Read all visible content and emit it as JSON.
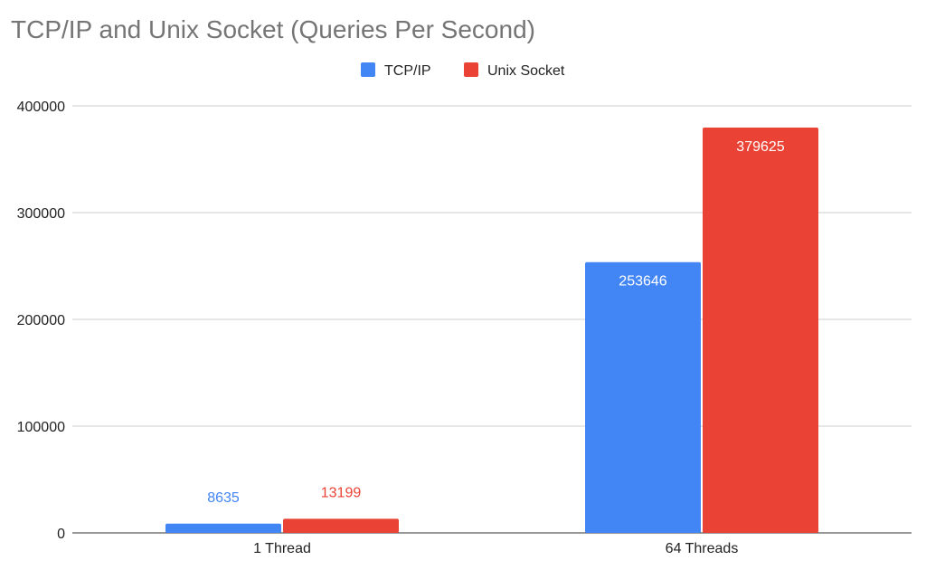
{
  "chart_data": {
    "type": "bar",
    "title": "TCP/IP  and Unix Socket (Queries Per Second)",
    "xlabel": "",
    "ylabel": "",
    "categories": [
      "1 Thread",
      "64 Threads"
    ],
    "series": [
      {
        "name": "TCP/IP",
        "values": [
          8635,
          253646
        ],
        "color": "#4285f4"
      },
      {
        "name": "Unix Socket",
        "values": [
          13199,
          379625
        ],
        "color": "#ea4335"
      }
    ],
    "ylim": [
      0,
      400000
    ],
    "yticks": [
      "0",
      "100000",
      "200000",
      "300000",
      "400000"
    ],
    "grid": true,
    "legend": "top-center",
    "data_labels": [
      "8635",
      "253646",
      "13199",
      "379625"
    ]
  }
}
